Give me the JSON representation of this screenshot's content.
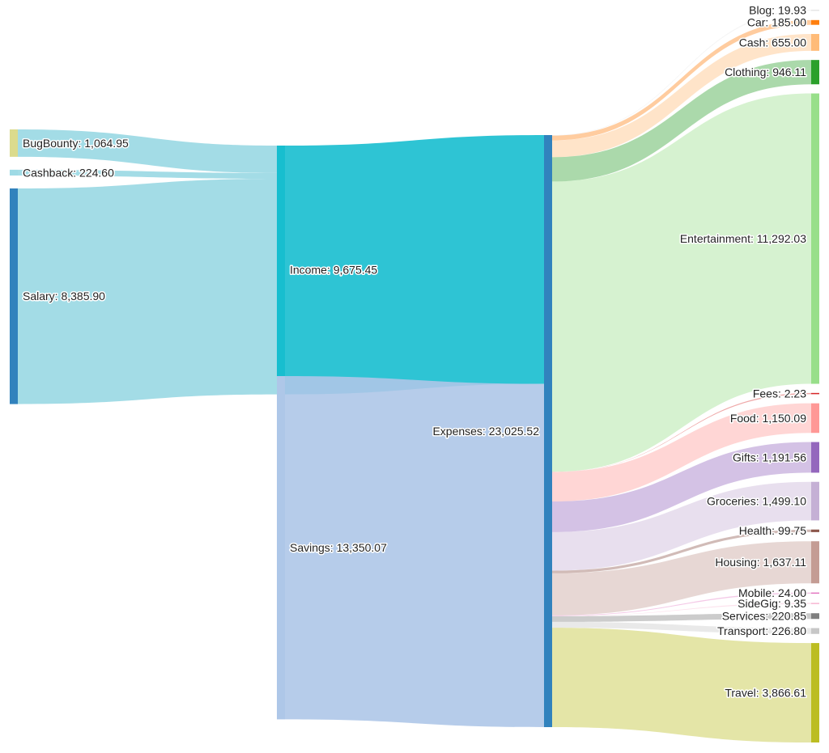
{
  "chart_data": {
    "type": "sankey",
    "title": "",
    "nodes": [
      {
        "id": "bugbounty",
        "name": "BugBounty",
        "label": "BugBounty: 1,064.95",
        "value": 1064.95,
        "color": "#dbdb8d",
        "column": 0
      },
      {
        "id": "cashback",
        "name": "Cashback",
        "label": "Cashback: 224.60",
        "value": 224.6,
        "color": "#9edae5",
        "column": 0
      },
      {
        "id": "salary",
        "name": "Salary",
        "label": "Salary: 8,385.90",
        "value": 8385.9,
        "color": "#3182bd",
        "column": 0
      },
      {
        "id": "income",
        "name": "Income",
        "label": "Income: 9,675.45",
        "value": 9675.45,
        "color": "#17becf",
        "column": 1
      },
      {
        "id": "savings",
        "name": "Savings",
        "label": "Savings: 13,350.07",
        "value": 13350.07,
        "color": "#aec7e8",
        "column": 1
      },
      {
        "id": "expenses",
        "name": "Expenses",
        "label": "Expenses: 23,025.52",
        "value": 23025.52,
        "color": "#3182bd",
        "column": 2
      },
      {
        "id": "blog",
        "name": "Blog",
        "label": "Blog: 19.93",
        "value": 19.93,
        "color": "#e6e6e6",
        "column": 3
      },
      {
        "id": "car",
        "name": "Car",
        "label": "Car: 185.00",
        "value": 185.0,
        "color": "#ff7f0e",
        "column": 3
      },
      {
        "id": "cash",
        "name": "Cash",
        "label": "Cash: 655.00",
        "value": 655.0,
        "color": "#ffbb78",
        "column": 3
      },
      {
        "id": "clothing",
        "name": "Clothing",
        "label": "Clothing: 946.11",
        "value": 946.11,
        "color": "#2ca02c",
        "column": 3
      },
      {
        "id": "entertainment",
        "name": "Entertainment",
        "label": "Entertainment: 11,292.03",
        "value": 11292.03,
        "color": "#98df8a",
        "column": 3
      },
      {
        "id": "fees",
        "name": "Fees",
        "label": "Fees: 2.23",
        "value": 2.23,
        "color": "#d62728",
        "column": 3
      },
      {
        "id": "food",
        "name": "Food",
        "label": "Food: 1,150.09",
        "value": 1150.09,
        "color": "#ff9896",
        "column": 3
      },
      {
        "id": "gifts",
        "name": "Gifts",
        "label": "Gifts: 1,191.56",
        "value": 1191.56,
        "color": "#9467bd",
        "column": 3
      },
      {
        "id": "groceries",
        "name": "Groceries",
        "label": "Groceries: 1,499.10",
        "value": 1499.1,
        "color": "#c5b0d5",
        "column": 3
      },
      {
        "id": "health",
        "name": "Health",
        "label": "Health: 99.75",
        "value": 99.75,
        "color": "#8c564b",
        "column": 3
      },
      {
        "id": "housing",
        "name": "Housing",
        "label": "Housing: 1,637.11",
        "value": 1637.11,
        "color": "#c49c94",
        "column": 3
      },
      {
        "id": "mobile",
        "name": "Mobile",
        "label": "Mobile: 24.00",
        "value": 24.0,
        "color": "#e377c2",
        "column": 3
      },
      {
        "id": "sidegig",
        "name": "SideGig",
        "label": "SideGig: 9.35",
        "value": 9.35,
        "color": "#f7b6d2",
        "column": 3
      },
      {
        "id": "services",
        "name": "Services",
        "label": "Services: 220.85",
        "value": 220.85,
        "color": "#7f7f7f",
        "column": 3
      },
      {
        "id": "transport",
        "name": "Transport",
        "label": "Transport: 226.80",
        "value": 226.8,
        "color": "#c7c7c7",
        "column": 3
      },
      {
        "id": "travel",
        "name": "Travel",
        "label": "Travel: 3,866.61",
        "value": 3866.61,
        "color": "#bcbd22",
        "column": 3
      }
    ],
    "links": [
      {
        "source": "bugbounty",
        "target": "income",
        "value": 1064.95
      },
      {
        "source": "cashback",
        "target": "income",
        "value": 224.6
      },
      {
        "source": "salary",
        "target": "income",
        "value": 8385.9
      },
      {
        "source": "income",
        "target": "expenses",
        "value": 9675.45
      },
      {
        "source": "savings",
        "target": "expenses",
        "value": 13350.07
      },
      {
        "source": "expenses",
        "target": "blog",
        "value": 19.93
      },
      {
        "source": "expenses",
        "target": "car",
        "value": 185.0
      },
      {
        "source": "expenses",
        "target": "cash",
        "value": 655.0
      },
      {
        "source": "expenses",
        "target": "clothing",
        "value": 946.11
      },
      {
        "source": "expenses",
        "target": "entertainment",
        "value": 11292.03
      },
      {
        "source": "expenses",
        "target": "fees",
        "value": 2.23
      },
      {
        "source": "expenses",
        "target": "food",
        "value": 1150.09
      },
      {
        "source": "expenses",
        "target": "gifts",
        "value": 1191.56
      },
      {
        "source": "expenses",
        "target": "groceries",
        "value": 1499.1
      },
      {
        "source": "expenses",
        "target": "health",
        "value": 99.75
      },
      {
        "source": "expenses",
        "target": "housing",
        "value": 1637.11
      },
      {
        "source": "expenses",
        "target": "mobile",
        "value": 24.0
      },
      {
        "source": "expenses",
        "target": "sidegig",
        "value": 9.35
      },
      {
        "source": "expenses",
        "target": "services",
        "value": 220.85
      },
      {
        "source": "expenses",
        "target": "transport",
        "value": 226.8
      },
      {
        "source": "expenses",
        "target": "travel",
        "value": 3866.61
      }
    ]
  }
}
